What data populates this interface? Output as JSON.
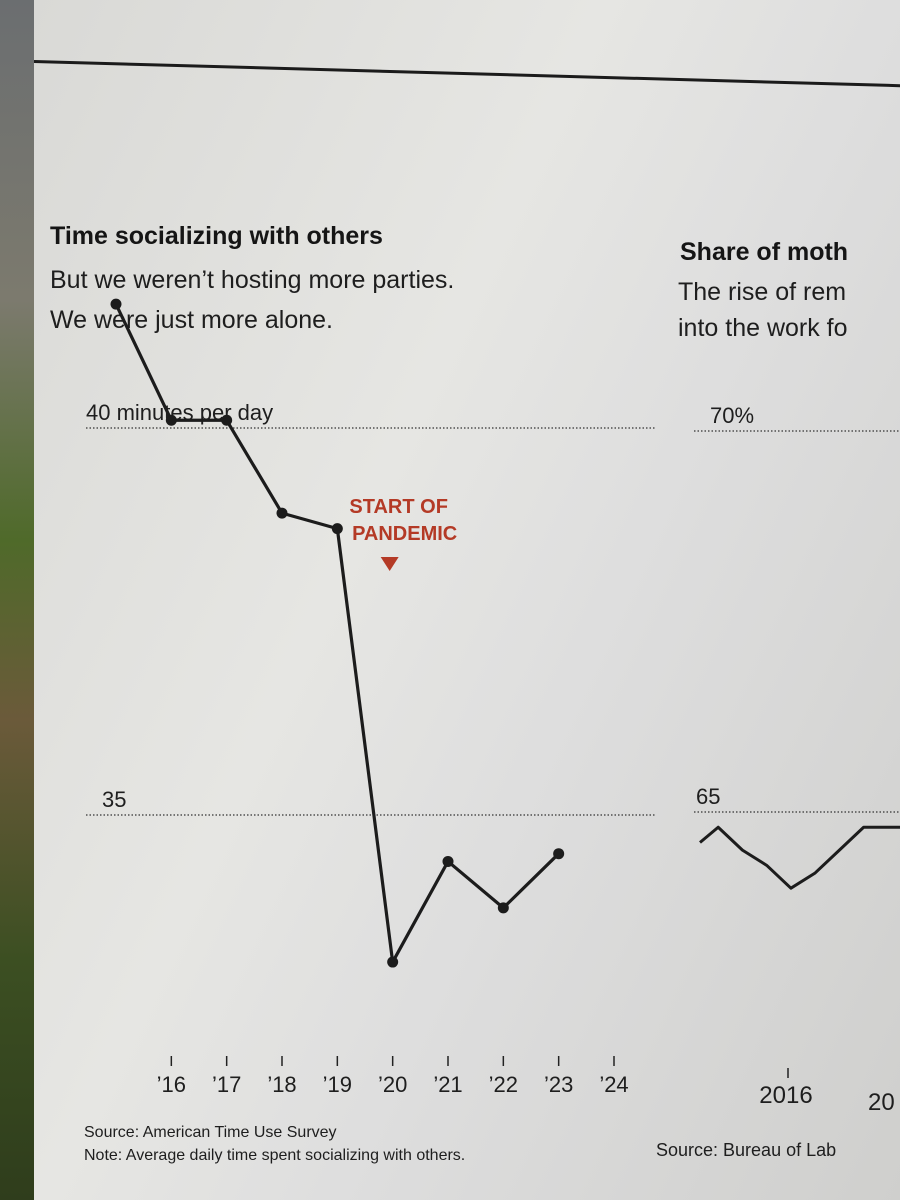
{
  "left_chart": {
    "title": "Time socializing with others",
    "subtitle_line1": "But we weren’t hosting more parties.",
    "subtitle_line2": "We were just more alone.",
    "source": "Source: American Time Use Survey",
    "note": "Note: Average daily time spent socializing with others.",
    "annotation_line1": "START OF",
    "annotation_line2": "PANDEMIC",
    "annotation_color": "#b43a26"
  },
  "right_chart": {
    "title": "Share of moth",
    "subtitle_line1": "The rise of rem",
    "subtitle_line2": "into the work fo",
    "source": "Source: Bureau of Lab"
  },
  "chart_data": [
    {
      "type": "line",
      "title": "Time socializing with others",
      "ylabel": "minutes per day",
      "x": [
        2015,
        2016,
        2017,
        2018,
        2019,
        2020,
        2021,
        2022,
        2023
      ],
      "values": [
        41.6,
        40.1,
        40.1,
        38.9,
        38.7,
        33.1,
        34.4,
        33.8,
        34.5
      ],
      "x_tick_values": [
        2016,
        2017,
        2018,
        2019,
        2020,
        2021,
        2022,
        2023,
        2024
      ],
      "x_tick_labels": [
        "’16",
        "’17",
        "’18",
        "’19",
        "’20",
        "’21",
        "’22",
        "’23",
        "’24"
      ],
      "y_gridlines": [
        40,
        35
      ],
      "y_tick_labels": [
        "40 minutes per day",
        "35"
      ],
      "ylim": [
        32.5,
        41.8
      ],
      "annotation": {
        "x": 2020,
        "text": "START OF PANDEMIC"
      },
      "grid": true
    },
    {
      "type": "line",
      "title": "Share of moth",
      "x_tick_labels": [
        "2016",
        "20"
      ],
      "y_gridlines": [
        70,
        65
      ],
      "y_tick_labels": [
        "70%",
        "65"
      ],
      "x": [
        2014.7,
        2015.0,
        2015.4,
        2015.8,
        2016.2,
        2016.6,
        2017.0,
        2017.4,
        2017.7,
        2018.0
      ],
      "values": [
        64.6,
        64.8,
        64.5,
        64.3,
        64.0,
        64.2,
        64.5,
        64.8,
        64.8,
        64.8
      ]
    }
  ]
}
